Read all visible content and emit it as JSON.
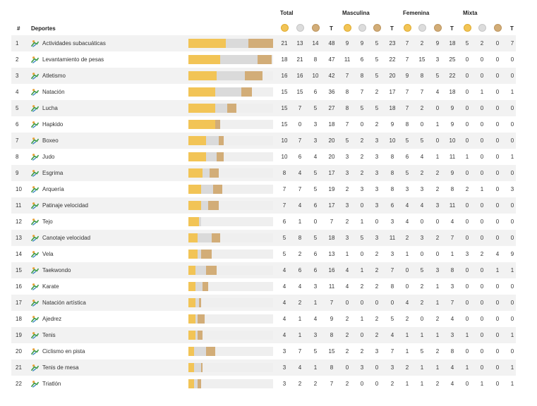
{
  "headers": {
    "total": "Total",
    "masculina": "Masculina",
    "femenina": "Femenina",
    "mixta": "Mixta",
    "rank": "#",
    "deportes": "Deportes",
    "t": "T"
  },
  "colors": {
    "gold": "#f2c456",
    "silver": "#dadada",
    "bronze": "#d2ad78"
  },
  "bar_max": 48,
  "rows": [
    {
      "rank": "1",
      "name": "Actividades subacuáticas",
      "total": [
        "21",
        "13",
        "14",
        "48"
      ],
      "masc": [
        "9",
        "9",
        "5",
        "23"
      ],
      "fem": [
        "7",
        "2",
        "9",
        "18"
      ],
      "mix": [
        "5",
        "2",
        "0",
        "7"
      ]
    },
    {
      "rank": "2",
      "name": "Levantamiento de pesas",
      "total": [
        "18",
        "21",
        "8",
        "47"
      ],
      "masc": [
        "11",
        "6",
        "5",
        "22"
      ],
      "fem": [
        "7",
        "15",
        "3",
        "25"
      ],
      "mix": [
        "0",
        "0",
        "0",
        "0"
      ]
    },
    {
      "rank": "3",
      "name": "Atletismo",
      "total": [
        "16",
        "16",
        "10",
        "42"
      ],
      "masc": [
        "7",
        "8",
        "5",
        "20"
      ],
      "fem": [
        "9",
        "8",
        "5",
        "22"
      ],
      "mix": [
        "0",
        "0",
        "0",
        "0"
      ]
    },
    {
      "rank": "4",
      "name": "Natación",
      "total": [
        "15",
        "15",
        "6",
        "36"
      ],
      "masc": [
        "8",
        "7",
        "2",
        "17"
      ],
      "fem": [
        "7",
        "7",
        "4",
        "18"
      ],
      "mix": [
        "0",
        "1",
        "0",
        "1"
      ]
    },
    {
      "rank": "5",
      "name": "Lucha",
      "total": [
        "15",
        "7",
        "5",
        "27"
      ],
      "masc": [
        "8",
        "5",
        "5",
        "18"
      ],
      "fem": [
        "7",
        "2",
        "0",
        "9"
      ],
      "mix": [
        "0",
        "0",
        "0",
        "0"
      ]
    },
    {
      "rank": "6",
      "name": "Hapkido",
      "total": [
        "15",
        "0",
        "3",
        "18"
      ],
      "masc": [
        "7",
        "0",
        "2",
        "9"
      ],
      "fem": [
        "8",
        "0",
        "1",
        "9"
      ],
      "mix": [
        "0",
        "0",
        "0",
        "0"
      ]
    },
    {
      "rank": "7",
      "name": "Boxeo",
      "total": [
        "10",
        "7",
        "3",
        "20"
      ],
      "masc": [
        "5",
        "2",
        "3",
        "10"
      ],
      "fem": [
        "5",
        "5",
        "0",
        "10"
      ],
      "mix": [
        "0",
        "0",
        "0",
        "0"
      ]
    },
    {
      "rank": "8",
      "name": "Judo",
      "total": [
        "10",
        "6",
        "4",
        "20"
      ],
      "masc": [
        "3",
        "2",
        "3",
        "8"
      ],
      "fem": [
        "6",
        "4",
        "1",
        "11"
      ],
      "mix": [
        "1",
        "0",
        "0",
        "1"
      ]
    },
    {
      "rank": "9",
      "name": "Esgrima",
      "total": [
        "8",
        "4",
        "5",
        "17"
      ],
      "masc": [
        "3",
        "2",
        "3",
        "8"
      ],
      "fem": [
        "5",
        "2",
        "2",
        "9"
      ],
      "mix": [
        "0",
        "0",
        "0",
        "0"
      ]
    },
    {
      "rank": "10",
      "name": "Arquería",
      "total": [
        "7",
        "7",
        "5",
        "19"
      ],
      "masc": [
        "2",
        "3",
        "3",
        "8"
      ],
      "fem": [
        "3",
        "3",
        "2",
        "8"
      ],
      "mix": [
        "2",
        "1",
        "0",
        "3"
      ]
    },
    {
      "rank": "11",
      "name": "Patinaje velocidad",
      "total": [
        "7",
        "4",
        "6",
        "17"
      ],
      "masc": [
        "3",
        "0",
        "3",
        "6"
      ],
      "fem": [
        "4",
        "4",
        "3",
        "11"
      ],
      "mix": [
        "0",
        "0",
        "0",
        "0"
      ]
    },
    {
      "rank": "12",
      "name": "Tejo",
      "total": [
        "6",
        "1",
        "0",
        "7"
      ],
      "masc": [
        "2",
        "1",
        "0",
        "3"
      ],
      "fem": [
        "4",
        "0",
        "0",
        "4"
      ],
      "mix": [
        "0",
        "0",
        "0",
        "0"
      ]
    },
    {
      "rank": "13",
      "name": "Canotaje velocidad",
      "total": [
        "5",
        "8",
        "5",
        "18"
      ],
      "masc": [
        "3",
        "5",
        "3",
        "11"
      ],
      "fem": [
        "2",
        "3",
        "2",
        "7"
      ],
      "mix": [
        "0",
        "0",
        "0",
        "0"
      ]
    },
    {
      "rank": "14",
      "name": "Vela",
      "total": [
        "5",
        "2",
        "6",
        "13"
      ],
      "masc": [
        "1",
        "0",
        "2",
        "3"
      ],
      "fem": [
        "1",
        "0",
        "0",
        "1"
      ],
      "mix": [
        "3",
        "2",
        "4",
        "9"
      ]
    },
    {
      "rank": "15",
      "name": "Taekwondo",
      "total": [
        "4",
        "6",
        "6",
        "16"
      ],
      "masc": [
        "4",
        "1",
        "2",
        "7"
      ],
      "fem": [
        "0",
        "5",
        "3",
        "8"
      ],
      "mix": [
        "0",
        "0",
        "1",
        "1"
      ]
    },
    {
      "rank": "16",
      "name": "Karate",
      "total": [
        "4",
        "4",
        "3",
        "11"
      ],
      "masc": [
        "4",
        "2",
        "2",
        "8"
      ],
      "fem": [
        "0",
        "2",
        "1",
        "3"
      ],
      "mix": [
        "0",
        "0",
        "0",
        "0"
      ]
    },
    {
      "rank": "17",
      "name": "Natación artística",
      "total": [
        "4",
        "2",
        "1",
        "7"
      ],
      "masc": [
        "0",
        "0",
        "0",
        "0"
      ],
      "fem": [
        "4",
        "2",
        "1",
        "7"
      ],
      "mix": [
        "0",
        "0",
        "0",
        "0"
      ]
    },
    {
      "rank": "18",
      "name": "Ajedrez",
      "total": [
        "4",
        "1",
        "4",
        "9"
      ],
      "masc": [
        "2",
        "1",
        "2",
        "5"
      ],
      "fem": [
        "2",
        "0",
        "2",
        "4"
      ],
      "mix": [
        "0",
        "0",
        "0",
        "0"
      ]
    },
    {
      "rank": "19",
      "name": "Tenis",
      "total": [
        "4",
        "1",
        "3",
        "8"
      ],
      "masc": [
        "2",
        "0",
        "2",
        "4"
      ],
      "fem": [
        "1",
        "1",
        "1",
        "3"
      ],
      "mix": [
        "1",
        "0",
        "0",
        "1"
      ]
    },
    {
      "rank": "20",
      "name": "Ciclismo en pista",
      "total": [
        "3",
        "7",
        "5",
        "15"
      ],
      "masc": [
        "2",
        "2",
        "3",
        "7"
      ],
      "fem": [
        "1",
        "5",
        "2",
        "8"
      ],
      "mix": [
        "0",
        "0",
        "0",
        "0"
      ]
    },
    {
      "rank": "21",
      "name": "Tenis de mesa",
      "total": [
        "3",
        "4",
        "1",
        "8"
      ],
      "masc": [
        "0",
        "3",
        "0",
        "3"
      ],
      "fem": [
        "2",
        "1",
        "1",
        "4"
      ],
      "mix": [
        "1",
        "0",
        "0",
        "1"
      ]
    },
    {
      "rank": "22",
      "name": "Triatlón",
      "total": [
        "3",
        "2",
        "2",
        "7"
      ],
      "masc": [
        "2",
        "0",
        "0",
        "2"
      ],
      "fem": [
        "1",
        "1",
        "2",
        "4"
      ],
      "mix": [
        "0",
        "1",
        "0",
        "1"
      ]
    }
  ]
}
